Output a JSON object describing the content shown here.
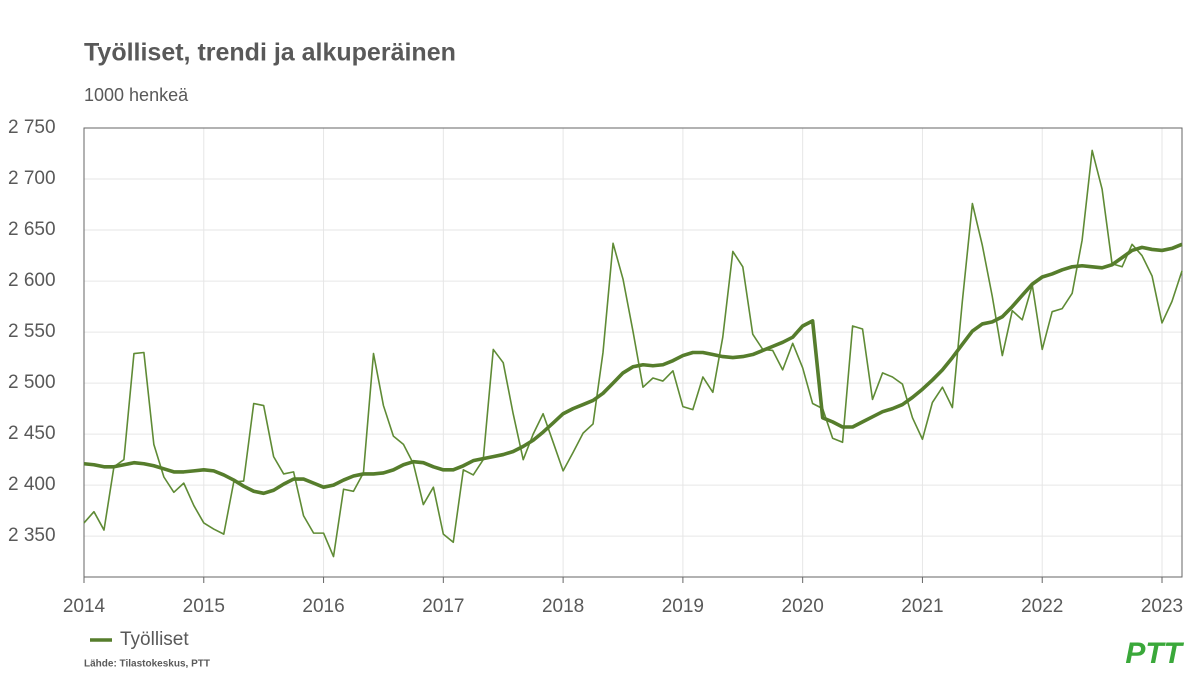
{
  "chart_data": {
    "type": "line",
    "title": "Työlliset, trendi ja alkuperäinen",
    "subtitle": "1000 henkeä",
    "source": "Lähde: Tilastokeskus, PTT",
    "logo": "PTT",
    "x": [
      2014,
      2014.083,
      2014.167,
      2014.25,
      2014.333,
      2014.417,
      2014.5,
      2014.583,
      2014.667,
      2014.75,
      2014.833,
      2014.917,
      2015,
      2015.083,
      2015.167,
      2015.25,
      2015.333,
      2015.417,
      2015.5,
      2015.583,
      2015.667,
      2015.75,
      2015.833,
      2015.917,
      2016,
      2016.083,
      2016.167,
      2016.25,
      2016.333,
      2016.417,
      2016.5,
      2016.583,
      2016.667,
      2016.75,
      2016.833,
      2016.917,
      2017,
      2017.083,
      2017.167,
      2017.25,
      2017.333,
      2017.417,
      2017.5,
      2017.583,
      2017.667,
      2017.75,
      2017.833,
      2017.917,
      2018,
      2018.083,
      2018.167,
      2018.25,
      2018.333,
      2018.417,
      2018.5,
      2018.583,
      2018.667,
      2018.75,
      2018.833,
      2018.917,
      2019,
      2019.083,
      2019.167,
      2019.25,
      2019.333,
      2019.417,
      2019.5,
      2019.583,
      2019.667,
      2019.75,
      2019.833,
      2019.917,
      2020,
      2020.083,
      2020.167,
      2020.25,
      2020.333,
      2020.417,
      2020.5,
      2020.583,
      2020.667,
      2020.75,
      2020.833,
      2020.917,
      2021,
      2021.083,
      2021.167,
      2021.25,
      2021.333,
      2021.417,
      2021.5,
      2021.583,
      2021.667,
      2021.75,
      2021.833,
      2021.917,
      2022,
      2022.083,
      2022.167,
      2022.25,
      2022.333,
      2022.417,
      2022.5,
      2022.583,
      2022.667,
      2022.75,
      2022.833,
      2022.917,
      2023,
      2023.083,
      2023.167
    ],
    "series": [
      {
        "color": "#5f8b35",
        "width": 1.6,
        "values": [
          2363,
          2374,
          2356,
          2418,
          2425,
          2529,
          2530,
          2440,
          2408,
          2393,
          2402,
          2380,
          2363,
          2357,
          2352,
          2403,
          2404,
          2480,
          2478,
          2428,
          2411,
          2413,
          2370,
          2353,
          2353,
          2330,
          2396,
          2394,
          2412,
          2529,
          2478,
          2448,
          2440,
          2421,
          2381,
          2398,
          2352,
          2344,
          2415,
          2410,
          2425,
          2533,
          2520,
          2470,
          2425,
          2450,
          2470,
          2442,
          2414,
          2432,
          2451,
          2460,
          2530,
          2637,
          2602,
          2551,
          2496,
          2505,
          2502,
          2512,
          2477,
          2474,
          2506,
          2491,
          2545,
          2629,
          2614,
          2548,
          2533,
          2532,
          2513,
          2539,
          2515,
          2480,
          2475,
          2446,
          2442,
          2556,
          2553,
          2484,
          2510,
          2506,
          2499,
          2466,
          2445,
          2481,
          2496,
          2476,
          2580,
          2676,
          2635,
          2585,
          2527,
          2571,
          2562,
          2596,
          2533,
          2570,
          2573,
          2588,
          2640,
          2728,
          2690,
          2617,
          2614,
          2636,
          2625,
          2605,
          2559,
          2580,
          2610
        ]
      },
      {
        "name": "Työlliset",
        "color": "#567d2c",
        "width": 3.6,
        "values": [
          2421,
          2420,
          2418,
          2418,
          2420,
          2422,
          2421,
          2419,
          2416,
          2413,
          2413,
          2414,
          2415,
          2414,
          2410,
          2405,
          2399,
          2394,
          2392,
          2395,
          2401,
          2406,
          2406,
          2402,
          2398,
          2400,
          2405,
          2409,
          2411,
          2411,
          2412,
          2415,
          2420,
          2423,
          2422,
          2418,
          2415,
          2415,
          2419,
          2424,
          2426,
          2428,
          2430,
          2433,
          2438,
          2444,
          2452,
          2461,
          2470,
          2475,
          2479,
          2483,
          2490,
          2500,
          2510,
          2516,
          2518,
          2517,
          2518,
          2522,
          2527,
          2530,
          2530,
          2528,
          2526,
          2525,
          2526,
          2528,
          2532,
          2536,
          2540,
          2545,
          2556,
          2561,
          2466,
          2462,
          2457,
          2457,
          2462,
          2467,
          2472,
          2475,
          2479,
          2486,
          2494,
          2503,
          2513,
          2525,
          2538,
          2551,
          2558,
          2560,
          2565,
          2575,
          2586,
          2597,
          2604,
          2607,
          2611,
          2614,
          2615,
          2614,
          2613,
          2616,
          2623,
          2630,
          2633,
          2631,
          2630,
          2632,
          2636
        ]
      }
    ],
    "xlim": [
      2014,
      2023.167
    ],
    "xticks": [
      2014,
      2015,
      2016,
      2017,
      2018,
      2019,
      2020,
      2021,
      2022,
      2023
    ],
    "ylim": [
      2310,
      2750
    ],
    "yticks": [
      {
        "value": 2350,
        "label": "2 350"
      },
      {
        "value": 2400,
        "label": "2 400"
      },
      {
        "value": 2450,
        "label": "2 450"
      },
      {
        "value": 2500,
        "label": "2 500"
      },
      {
        "value": 2550,
        "label": "2 550"
      },
      {
        "value": 2600,
        "label": "2 600"
      },
      {
        "value": 2650,
        "label": "2 650"
      },
      {
        "value": 2700,
        "label": "2 700"
      },
      {
        "value": 2750,
        "label": "2 750"
      }
    ],
    "grid": true
  }
}
